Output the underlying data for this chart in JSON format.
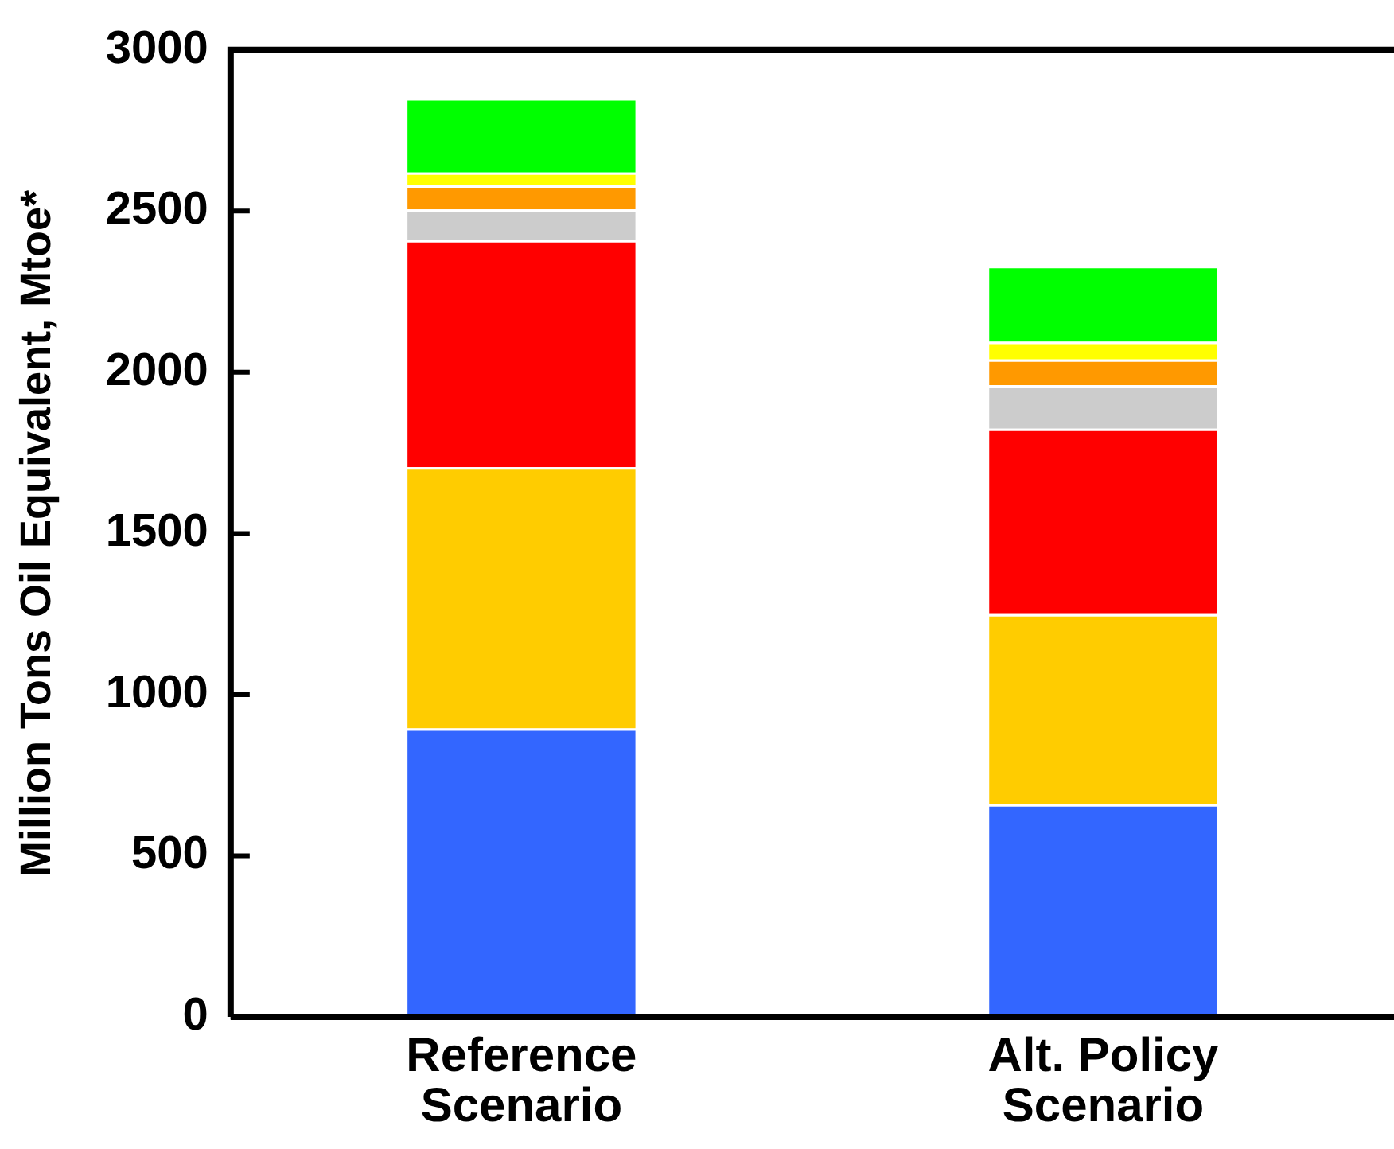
{
  "chart_data": {
    "type": "bar",
    "ylabel": "Million Tons Oil Equivalent, Mtoe*",
    "categories": [
      "Reference Scenario",
      "Alt. Policy Scenario"
    ],
    "stacked": true,
    "series": [
      {
        "color": "#3366ff",
        "values": [
          895,
          660
        ]
      },
      {
        "color": "#ffcc00",
        "values": [
          810,
          590
        ]
      },
      {
        "color": "#ff0000",
        "values": [
          705,
          575
        ]
      },
      {
        "color": "#cccccc",
        "values": [
          95,
          135
        ]
      },
      {
        "color": "#ff9900",
        "values": [
          75,
          80
        ]
      },
      {
        "color": "#ffff00",
        "values": [
          40,
          55
        ]
      },
      {
        "color": "#00ff00",
        "values": [
          230,
          235
        ]
      }
    ],
    "ylim": [
      0,
      3000
    ],
    "yticks": [
      0,
      500,
      1000,
      1500,
      2000,
      2500,
      3000
    ],
    "grid": false,
    "legend": false
  }
}
